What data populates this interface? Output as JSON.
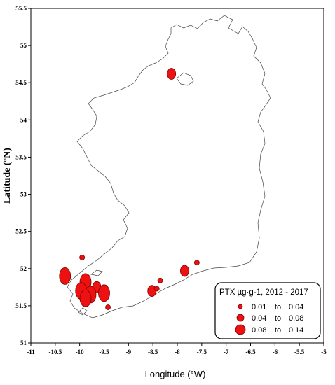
{
  "chart_data": {
    "type": "scatter",
    "xlabel": "Longitude (°W)",
    "ylabel": "Latitude (°N)",
    "xlim": [
      -11,
      -5
    ],
    "ylim": [
      51,
      55.5
    ],
    "x_ticks": [
      "-11",
      "-10.5",
      "-10",
      "-9.5",
      "-9",
      "-8.5",
      "-8",
      "-7.5",
      "-7",
      "-6.5",
      "-6",
      "-5.5",
      "-5"
    ],
    "y_ticks": [
      "51",
      "51.5",
      "52",
      "52.5",
      "53",
      "53.5",
      "54",
      "54.5",
      "55",
      "55.5"
    ],
    "legend": {
      "title": "PTX µg·g-1, 2012 - 2017",
      "placement": "bottom-right",
      "entries": [
        {
          "from": "0.01",
          "to_word": "to",
          "to": "0.04",
          "size": "small"
        },
        {
          "from": "0.04",
          "to_word": "to",
          "to": "0.08",
          "size": "medium"
        },
        {
          "from": "0.08",
          "to_word": "to",
          "to": "0.14",
          "size": "large"
        }
      ]
    },
    "marker_color": "#ee1111",
    "points": [
      {
        "lon": -8.12,
        "lat": 54.62,
        "cls": 1
      },
      {
        "lon": -9.95,
        "lat": 52.15,
        "cls": 0
      },
      {
        "lon": -10.3,
        "lat": 51.9,
        "cls": 2
      },
      {
        "lon": -9.88,
        "lat": 51.82,
        "cls": 2
      },
      {
        "lon": -9.65,
        "lat": 51.75,
        "cls": 1
      },
      {
        "lon": -9.97,
        "lat": 51.7,
        "cls": 2
      },
      {
        "lon": -9.78,
        "lat": 51.65,
        "cls": 2
      },
      {
        "lon": -9.5,
        "lat": 51.67,
        "cls": 2
      },
      {
        "lon": -9.88,
        "lat": 51.6,
        "cls": 2
      },
      {
        "lon": -9.42,
        "lat": 51.48,
        "cls": 0
      },
      {
        "lon": -8.52,
        "lat": 51.7,
        "cls": 1
      },
      {
        "lon": -8.42,
        "lat": 51.73,
        "cls": 0
      },
      {
        "lon": -8.35,
        "lat": 51.84,
        "cls": 0
      },
      {
        "lon": -7.85,
        "lat": 51.97,
        "cls": 1
      },
      {
        "lon": -7.6,
        "lat": 52.08,
        "cls": 0
      }
    ]
  }
}
